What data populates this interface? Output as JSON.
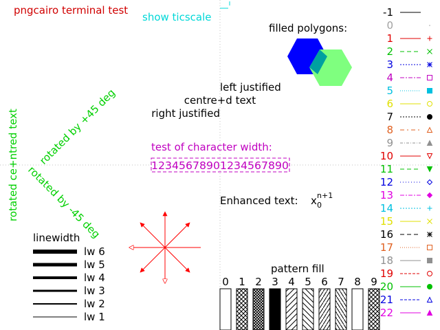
{
  "title": {
    "text": "pngcairo  terminal test",
    "color": "#d00000"
  },
  "ticscale": {
    "text": "show ticscale",
    "color": "#00d8d8"
  },
  "filled_polygons": {
    "label": "filled polygons:",
    "colors": [
      "#0000ff",
      "#00a0a0",
      "#7fff7f"
    ]
  },
  "justification": {
    "left": "left justified",
    "centre": "centre+d text",
    "right": "right justified"
  },
  "rotated": {
    "centred": "rotated ce+ntred text",
    "plus45": "rotated by +45 deg",
    "minus45": "rotated by -45 deg",
    "color": "#00d000"
  },
  "char_width": {
    "label": "test of character width:",
    "sample": "12345678901234567890",
    "color": "#c000c0"
  },
  "enhanced": {
    "label": "Enhanced text:",
    "base": "x",
    "sub": "0",
    "sup": "n+1"
  },
  "linewidth": {
    "title": "linewidth",
    "items": [
      {
        "label": "lw 6",
        "value": 6
      },
      {
        "label": "lw 5",
        "value": 5
      },
      {
        "label": "lw 4",
        "value": 4
      },
      {
        "label": "lw 3",
        "value": 3
      },
      {
        "label": "lw 2",
        "value": 2
      },
      {
        "label": "lw 1",
        "value": 1
      }
    ]
  },
  "pattern_fill": {
    "title": "pattern fill",
    "labels": [
      "0",
      "1",
      "2",
      "3",
      "4",
      "5",
      "6",
      "7",
      "8",
      "9"
    ]
  },
  "arrows_color": "#ff0000",
  "linetypes": [
    {
      "label": "-1",
      "color": "#000000"
    },
    {
      "label": "0",
      "color": "#a0a0a0"
    },
    {
      "label": "1",
      "color": "#e00000"
    },
    {
      "label": "2",
      "color": "#00c000"
    },
    {
      "label": "3",
      "color": "#0000e0"
    },
    {
      "label": "4",
      "color": "#c000c0"
    },
    {
      "label": "5",
      "color": "#00c0e0"
    },
    {
      "label": "6",
      "color": "#e0e000"
    },
    {
      "label": "7",
      "color": "#000000"
    },
    {
      "label": "8",
      "color": "#e06020"
    },
    {
      "label": "9",
      "color": "#909090"
    },
    {
      "label": "10",
      "color": "#e00000"
    },
    {
      "label": "11",
      "color": "#00c000"
    },
    {
      "label": "12",
      "color": "#0000e0"
    },
    {
      "label": "13",
      "color": "#e000e0"
    },
    {
      "label": "14",
      "color": "#00c0e0"
    },
    {
      "label": "15",
      "color": "#e0e000"
    },
    {
      "label": "16",
      "color": "#000000"
    },
    {
      "label": "17",
      "color": "#e06020"
    },
    {
      "label": "18",
      "color": "#909090"
    },
    {
      "label": "19",
      "color": "#e00000"
    },
    {
      "label": "20",
      "color": "#00c000"
    },
    {
      "label": "21",
      "color": "#0000e0"
    },
    {
      "label": "22",
      "color": "#e000e0"
    }
  ]
}
